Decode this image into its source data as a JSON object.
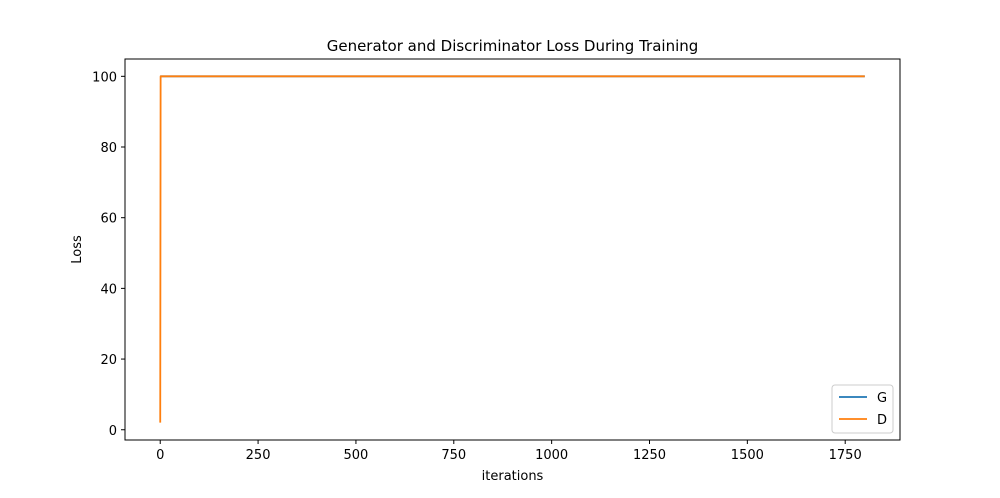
{
  "chart_data": {
    "type": "line",
    "title": "Generator and Discriminator Loss During Training",
    "xlabel": "iterations",
    "ylabel": "Loss",
    "xlim": [
      -90,
      1890
    ],
    "ylim": [
      -2.9,
      104.9
    ],
    "xticks": [
      0,
      250,
      500,
      750,
      1000,
      1250,
      1500,
      1750
    ],
    "yticks": [
      0,
      20,
      40,
      60,
      80,
      100
    ],
    "grid": false,
    "legend_position": "lower right",
    "series": [
      {
        "name": "G",
        "color": "#1f77b4",
        "x": [
          0,
          1,
          1800
        ],
        "y": [
          100,
          100,
          100
        ]
      },
      {
        "name": "D",
        "color": "#ff7f0e",
        "x": [
          0,
          1,
          1800
        ],
        "y": [
          2,
          100,
          100
        ]
      }
    ]
  }
}
